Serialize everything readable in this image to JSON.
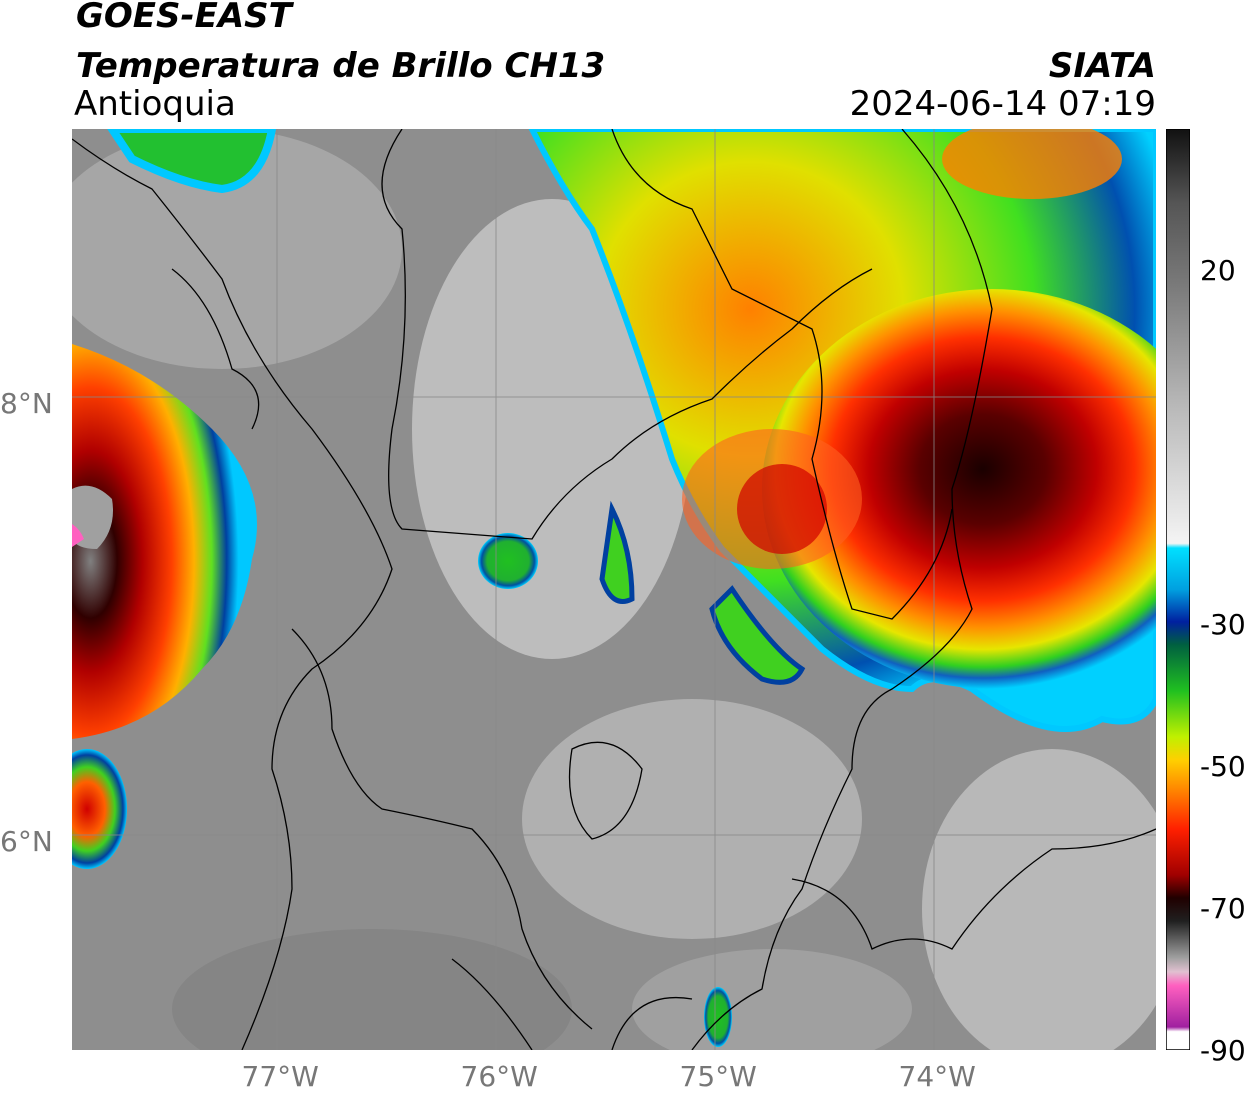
{
  "header": {
    "satellite": "GOES-EAST",
    "product": "Temperatura de Brillo CH13",
    "region": "Antioquia",
    "agency": "SIATA",
    "timestamp": "2024-06-14 07:19"
  },
  "map": {
    "lon_range": [
      -77.95,
      -73.0
    ],
    "lat_range": [
      5.05,
      9.25
    ],
    "lon_ticks": [
      {
        "value": -77,
        "label": "77°W"
      },
      {
        "value": -76,
        "label": "76°W"
      },
      {
        "value": -75,
        "label": "75°W"
      },
      {
        "value": -74,
        "label": "74°W"
      }
    ],
    "lat_ticks": [
      {
        "value": 8,
        "label": "8°N"
      },
      {
        "value": 6,
        "label": "6°N"
      }
    ]
  },
  "colorbar": {
    "range": [
      -90,
      40
    ],
    "labels": [
      {
        "value": 20,
        "label": "20"
      },
      {
        "value": -30,
        "label": "-30"
      },
      {
        "value": -50,
        "label": "-50"
      },
      {
        "value": -70,
        "label": "-70"
      },
      {
        "value": -90,
        "label": "-90"
      }
    ]
  }
}
